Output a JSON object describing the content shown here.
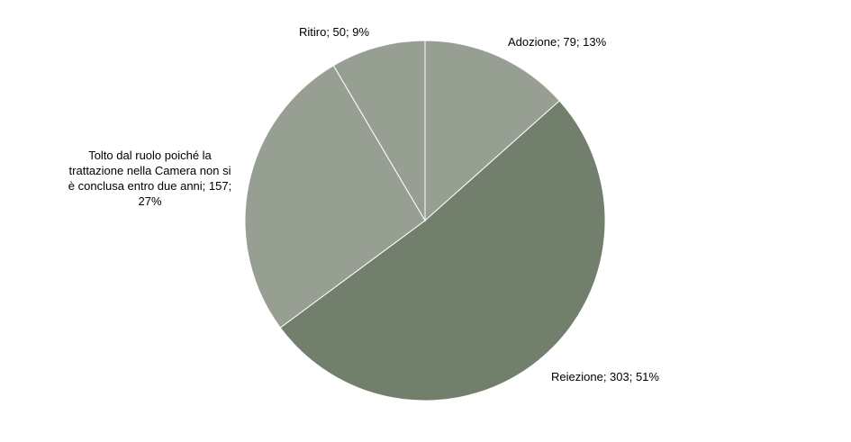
{
  "chart_data": {
    "type": "pie",
    "title": "",
    "slices": [
      {
        "category": "Adozione",
        "value": 79,
        "percent": "13%",
        "label": "Adozione; 79; 13%",
        "color": "#979F93"
      },
      {
        "category": "Reiezione",
        "value": 303,
        "percent": "51%",
        "label": "Reiezione; 303; 51%",
        "color": "#737F6D"
      },
      {
        "category": "Tolto dal ruolo poiché la trattazione nella Camera non si è conclusa entro due anni",
        "value": 157,
        "percent": "27%",
        "label": "Tolto dal ruolo poiché la trattazione nella Camera non si è conclusa entro due anni; 157; 27%",
        "color": "#979F93"
      },
      {
        "category": "Ritiro",
        "value": 50,
        "percent": "9%",
        "label": "Ritiro; 50; 9%",
        "color": "#979F93"
      }
    ],
    "start_angle_deg": 0,
    "direction": "clockwise",
    "slice_border_color": "#ffffff"
  }
}
